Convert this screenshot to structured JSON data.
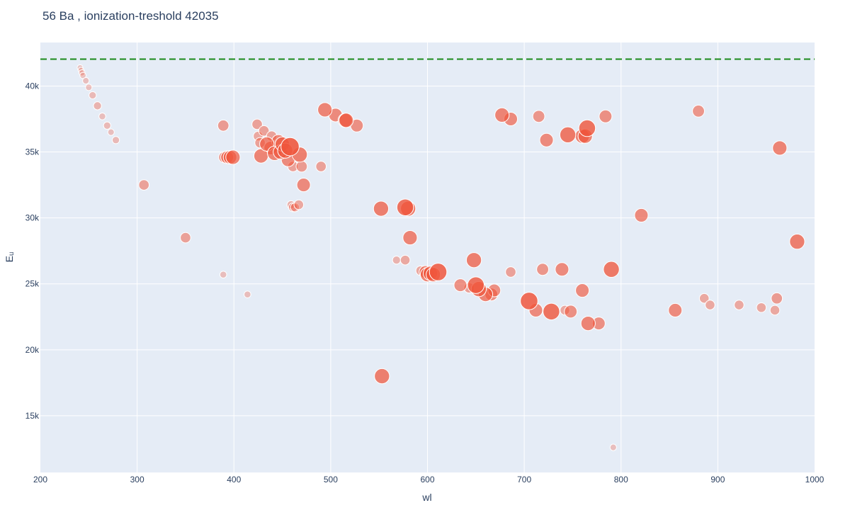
{
  "chart_data": {
    "type": "scatter",
    "title": "56 Ba , ionization-treshold 42035",
    "xlabel": "wl",
    "ylabel": "Eᵤ",
    "xlim": [
      200,
      1000
    ],
    "ylim": [
      10700,
      43300
    ],
    "x_ticks": [
      200,
      300,
      400,
      500,
      600,
      700,
      800,
      900,
      1000
    ],
    "x_tick_labels": [
      "200",
      "300",
      "400",
      "500",
      "600",
      "700",
      "800",
      "900",
      "1000"
    ],
    "y_ticks": [
      15000,
      20000,
      25000,
      30000,
      35000,
      40000
    ],
    "y_tick_labels": [
      "15k",
      "20k",
      "25k",
      "30k",
      "35k",
      "40k"
    ],
    "grid": true,
    "threshold_line": {
      "y": 42035,
      "color": "#1a8a1a",
      "style": "dashed"
    },
    "marker_color": "#ef553b",
    "points": [
      {
        "x": 241,
        "y": 41400,
        "s": 0.05
      },
      {
        "x": 242,
        "y": 41200,
        "s": 0.05
      },
      {
        "x": 243,
        "y": 41000,
        "s": 0.08
      },
      {
        "x": 244,
        "y": 40800,
        "s": 0.08
      },
      {
        "x": 247,
        "y": 40400,
        "s": 0.1
      },
      {
        "x": 250,
        "y": 39900,
        "s": 0.1
      },
      {
        "x": 254,
        "y": 39300,
        "s": 0.15
      },
      {
        "x": 259,
        "y": 38500,
        "s": 0.2
      },
      {
        "x": 264,
        "y": 37700,
        "s": 0.12
      },
      {
        "x": 269,
        "y": 37000,
        "s": 0.15
      },
      {
        "x": 273,
        "y": 36500,
        "s": 0.1
      },
      {
        "x": 278,
        "y": 35900,
        "s": 0.15
      },
      {
        "x": 307,
        "y": 32500,
        "s": 0.35
      },
      {
        "x": 350,
        "y": 28500,
        "s": 0.35
      },
      {
        "x": 389,
        "y": 25700,
        "s": 0.12
      },
      {
        "x": 389,
        "y": 37000,
        "s": 0.4
      },
      {
        "x": 390,
        "y": 34600,
        "s": 0.4
      },
      {
        "x": 393,
        "y": 34600,
        "s": 0.5
      },
      {
        "x": 396,
        "y": 34600,
        "s": 0.55
      },
      {
        "x": 399,
        "y": 34600,
        "s": 0.6
      },
      {
        "x": 414,
        "y": 24200,
        "s": 0.12
      },
      {
        "x": 424,
        "y": 37100,
        "s": 0.35
      },
      {
        "x": 425,
        "y": 36200,
        "s": 0.3
      },
      {
        "x": 427,
        "y": 35700,
        "s": 0.35
      },
      {
        "x": 428,
        "y": 34700,
        "s": 0.6
      },
      {
        "x": 431,
        "y": 36600,
        "s": 0.35
      },
      {
        "x": 434,
        "y": 35600,
        "s": 0.6
      },
      {
        "x": 438,
        "y": 35300,
        "s": 0.55
      },
      {
        "x": 439,
        "y": 36200,
        "s": 0.35
      },
      {
        "x": 442,
        "y": 34900,
        "s": 0.6
      },
      {
        "x": 446,
        "y": 35800,
        "s": 0.55
      },
      {
        "x": 448,
        "y": 35000,
        "s": 0.6
      },
      {
        "x": 450,
        "y": 35600,
        "s": 0.6
      },
      {
        "x": 453,
        "y": 35100,
        "s": 0.65
      },
      {
        "x": 456,
        "y": 34400,
        "s": 0.55
      },
      {
        "x": 458,
        "y": 35400,
        "s": 0.85
      },
      {
        "x": 459,
        "y": 31000,
        "s": 0.2
      },
      {
        "x": 461,
        "y": 33900,
        "s": 0.35
      },
      {
        "x": 461,
        "y": 30800,
        "s": 0.25
      },
      {
        "x": 463,
        "y": 30800,
        "s": 0.25
      },
      {
        "x": 467,
        "y": 31000,
        "s": 0.3
      },
      {
        "x": 468,
        "y": 34800,
        "s": 0.65
      },
      {
        "x": 470,
        "y": 33900,
        "s": 0.4
      },
      {
        "x": 472,
        "y": 32500,
        "s": 0.55
      },
      {
        "x": 490,
        "y": 33900,
        "s": 0.35
      },
      {
        "x": 494,
        "y": 38200,
        "s": 0.6
      },
      {
        "x": 505,
        "y": 37800,
        "s": 0.55
      },
      {
        "x": 515,
        "y": 37400,
        "s": 0.6
      },
      {
        "x": 516,
        "y": 37400,
        "s": 0.6
      },
      {
        "x": 527,
        "y": 37000,
        "s": 0.5
      },
      {
        "x": 552,
        "y": 30700,
        "s": 0.65
      },
      {
        "x": 553,
        "y": 18000,
        "s": 0.65
      },
      {
        "x": 568,
        "y": 26800,
        "s": 0.2
      },
      {
        "x": 577,
        "y": 30800,
        "s": 0.75
      },
      {
        "x": 577,
        "y": 26800,
        "s": 0.3
      },
      {
        "x": 580,
        "y": 30700,
        "s": 0.65
      },
      {
        "x": 582,
        "y": 28500,
        "s": 0.6
      },
      {
        "x": 593,
        "y": 26000,
        "s": 0.3
      },
      {
        "x": 598,
        "y": 25900,
        "s": 0.5
      },
      {
        "x": 600,
        "y": 25700,
        "s": 0.6
      },
      {
        "x": 603,
        "y": 25800,
        "s": 0.6
      },
      {
        "x": 606,
        "y": 25700,
        "s": 0.6
      },
      {
        "x": 611,
        "y": 25900,
        "s": 0.8
      },
      {
        "x": 634,
        "y": 24900,
        "s": 0.5
      },
      {
        "x": 643,
        "y": 24700,
        "s": 0.35
      },
      {
        "x": 648,
        "y": 26800,
        "s": 0.65
      },
      {
        "x": 650,
        "y": 24900,
        "s": 0.75
      },
      {
        "x": 653,
        "y": 24600,
        "s": 0.65
      },
      {
        "x": 660,
        "y": 24200,
        "s": 0.6
      },
      {
        "x": 666,
        "y": 24200,
        "s": 0.5
      },
      {
        "x": 669,
        "y": 24500,
        "s": 0.5
      },
      {
        "x": 677,
        "y": 37800,
        "s": 0.6
      },
      {
        "x": 686,
        "y": 37500,
        "s": 0.55
      },
      {
        "x": 686,
        "y": 25900,
        "s": 0.35
      },
      {
        "x": 705,
        "y": 23700,
        "s": 0.8
      },
      {
        "x": 712,
        "y": 23000,
        "s": 0.55
      },
      {
        "x": 715,
        "y": 37700,
        "s": 0.45
      },
      {
        "x": 719,
        "y": 26100,
        "s": 0.45
      },
      {
        "x": 723,
        "y": 35900,
        "s": 0.55
      },
      {
        "x": 728,
        "y": 22900,
        "s": 0.75
      },
      {
        "x": 739,
        "y": 26100,
        "s": 0.55
      },
      {
        "x": 742,
        "y": 23000,
        "s": 0.3
      },
      {
        "x": 745,
        "y": 36300,
        "s": 0.7
      },
      {
        "x": 748,
        "y": 22900,
        "s": 0.5
      },
      {
        "x": 760,
        "y": 36200,
        "s": 0.6
      },
      {
        "x": 760,
        "y": 24500,
        "s": 0.55
      },
      {
        "x": 763,
        "y": 36200,
        "s": 0.6
      },
      {
        "x": 765,
        "y": 36800,
        "s": 0.75
      },
      {
        "x": 766,
        "y": 22000,
        "s": 0.6
      },
      {
        "x": 777,
        "y": 22000,
        "s": 0.5
      },
      {
        "x": 784,
        "y": 37700,
        "s": 0.5
      },
      {
        "x": 790,
        "y": 26100,
        "s": 0.7
      },
      {
        "x": 792,
        "y": 12600,
        "s": 0.1
      },
      {
        "x": 821,
        "y": 30200,
        "s": 0.55
      },
      {
        "x": 856,
        "y": 23000,
        "s": 0.55
      },
      {
        "x": 880,
        "y": 38100,
        "s": 0.45
      },
      {
        "x": 886,
        "y": 23900,
        "s": 0.3
      },
      {
        "x": 892,
        "y": 23400,
        "s": 0.3
      },
      {
        "x": 922,
        "y": 23400,
        "s": 0.3
      },
      {
        "x": 945,
        "y": 23200,
        "s": 0.3
      },
      {
        "x": 959,
        "y": 23000,
        "s": 0.3
      },
      {
        "x": 961,
        "y": 23900,
        "s": 0.4
      },
      {
        "x": 964,
        "y": 35300,
        "s": 0.6
      },
      {
        "x": 982,
        "y": 28200,
        "s": 0.65
      }
    ]
  }
}
